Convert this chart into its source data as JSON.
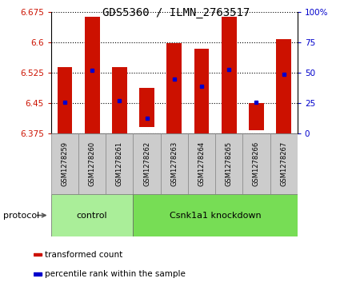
{
  "title": "GDS5360 / ILMN_2763517",
  "samples": [
    "GSM1278259",
    "GSM1278260",
    "GSM1278261",
    "GSM1278262",
    "GSM1278263",
    "GSM1278264",
    "GSM1278265",
    "GSM1278266",
    "GSM1278267"
  ],
  "bar_tops": [
    6.538,
    6.663,
    6.538,
    6.488,
    6.598,
    6.583,
    6.663,
    6.45,
    6.608
  ],
  "bar_bottoms": [
    6.375,
    6.375,
    6.375,
    6.39,
    6.375,
    6.375,
    6.375,
    6.383,
    6.375
  ],
  "blue_dot_values": [
    6.452,
    6.53,
    6.455,
    6.413,
    6.508,
    6.492,
    6.533,
    6.452,
    6.52
  ],
  "bar_color": "#cc1100",
  "blue_color": "#0000cc",
  "ylim_left": [
    6.375,
    6.675
  ],
  "ylim_right": [
    0,
    100
  ],
  "yticks_left": [
    6.375,
    6.45,
    6.525,
    6.6,
    6.675
  ],
  "yticks_right": [
    0,
    25,
    50,
    75,
    100
  ],
  "left_tick_labels": [
    "6.375",
    "6.45",
    "6.525",
    "6.6",
    "6.675"
  ],
  "right_tick_labels": [
    "0",
    "25",
    "50",
    "75",
    "100%"
  ],
  "groups": [
    {
      "label": "control",
      "start": 0,
      "end": 3,
      "color": "#aaee99"
    },
    {
      "label": "Csnk1a1 knockdown",
      "start": 3,
      "end": 9,
      "color": "#77dd55"
    }
  ],
  "protocol_label": "protocol",
  "legend_items": [
    {
      "color": "#cc1100",
      "label": "transformed count"
    },
    {
      "color": "#0000cc",
      "label": "percentile rank within the sample"
    }
  ],
  "bar_width": 0.55,
  "background_color": "#ffffff",
  "plot_bg_color": "#ffffff",
  "sample_box_color": "#cccccc",
  "title_fontsize": 10,
  "tick_fontsize": 7.5,
  "sample_fontsize": 6,
  "group_fontsize": 8,
  "legend_fontsize": 7.5,
  "protocol_fontsize": 8
}
